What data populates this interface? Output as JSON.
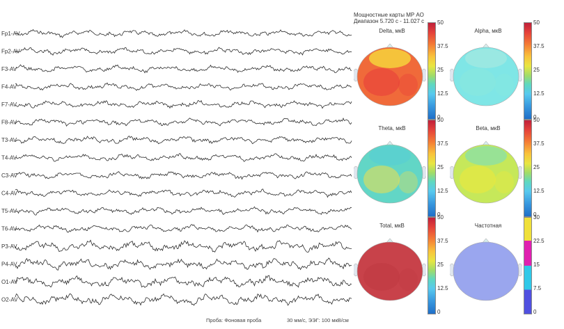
{
  "header": {
    "title": "Мощностные карты МР АО",
    "range": "Диапазон 5.720 с - 11.027 с"
  },
  "channels": [
    "Fp1-AV",
    "Fp2-AV",
    "F3-AV",
    "F4-AV",
    "F7-AV",
    "F8-AV",
    "T3-AV",
    "T4-AV",
    "C3-AV",
    "C4-AV",
    "T5-AV",
    "T6-AV",
    "P3-AV",
    "P4-AV",
    "O1-AV",
    "O2-AV"
  ],
  "maps": [
    {
      "title": "Delta, мкВ",
      "scale": [
        "50",
        "37.5",
        "25",
        "12.5",
        "0"
      ],
      "scale_type": "amplitude",
      "fill": "#f06a3a",
      "blob": "#e83a3a",
      "top_fill": "#f6d23c"
    },
    {
      "title": "Alpha, мкВ",
      "scale": [
        "50",
        "37.5",
        "25",
        "12.5",
        "0"
      ],
      "scale_type": "amplitude",
      "fill": "#7fe6e6",
      "blob": "#8ae8dc",
      "top_fill": "#9fe8e0"
    },
    {
      "title": "Theta, мкВ",
      "scale": [
        "50",
        "37.5",
        "25",
        "12.5",
        "0"
      ],
      "scale_type": "amplitude",
      "fill": "#62d6c6",
      "blob": "#f0e04a",
      "top_fill": "#5ad0d0"
    },
    {
      "title": "Beta, мкВ",
      "scale": [
        "50",
        "37.5",
        "25",
        "12.5",
        "0"
      ],
      "scale_type": "amplitude",
      "fill": "#c6e85a",
      "blob": "#f0e83a",
      "top_fill": "#8fe0a0"
    },
    {
      "title": "Total, мкВ",
      "scale": [
        "50",
        "37.5",
        "25",
        "12.5",
        "0"
      ],
      "scale_type": "amplitude",
      "fill": "#c8424a",
      "blob": "#c03a42",
      "top_fill": "#c8424a"
    },
    {
      "title": "Частотная",
      "scale": [
        "30",
        "22.5",
        "15",
        "7.5",
        "0"
      ],
      "scale_type": "frequency",
      "fill": "#9aa6ee",
      "blob": "#9aa6ee",
      "top_fill": "#9aa6ee"
    }
  ],
  "footer": {
    "probe": "Проба: Фоновая проба",
    "settings": "30 мм/с, ЭЭГ: 100 мкВ/см"
  }
}
